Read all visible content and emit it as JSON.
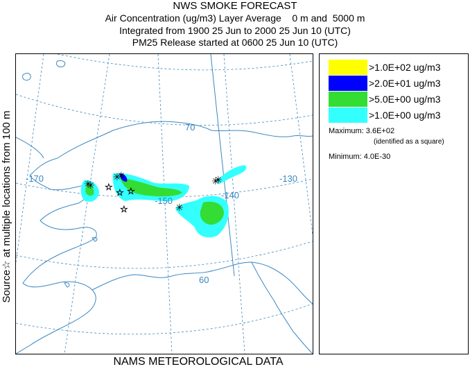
{
  "header": {
    "title": "NWS SMOKE FORECAST",
    "line2": "Air Concentration (ug/m3) Layer Average    0 m and  5000 m",
    "line3": "Integrated from 1900 25 Jun to 2000 25 Jun 10 (UTC)",
    "line4": "PM25 Release started at 0600 25 Jun 10 (UTC)"
  },
  "side_label": "Source☆ at multiple locations   from   100 m",
  "map": {
    "lat_labels": [
      "70",
      "60"
    ],
    "lon_labels": [
      "-170",
      "-150",
      "-140",
      "-130"
    ],
    "colors": {
      "land": "#3a87c0",
      "grid": "#3a87c0",
      "cyan": "#3ff",
      "green": "#33dd33",
      "blue": "#0000ff",
      "yellow": "#ffff00"
    }
  },
  "legend": {
    "items": [
      {
        "label": ">1.0E+02 ug/m3",
        "color": "#ffff00"
      },
      {
        "label": ">2.0E+01 ug/m3",
        "color": "#0000ff"
      },
      {
        "label": ">5.0E+00 ug/m3",
        "color": "#33dd33"
      },
      {
        "label": ">1.0E+00 ug/m3",
        "color": "#33ffff"
      }
    ],
    "maximum": "Maximum: 3.6E+02",
    "maximum_note": "(identified as a square)",
    "minimum": "Minimum: 4.0E-30"
  },
  "footer": "NAMS METEOROLOGICAL DATA"
}
